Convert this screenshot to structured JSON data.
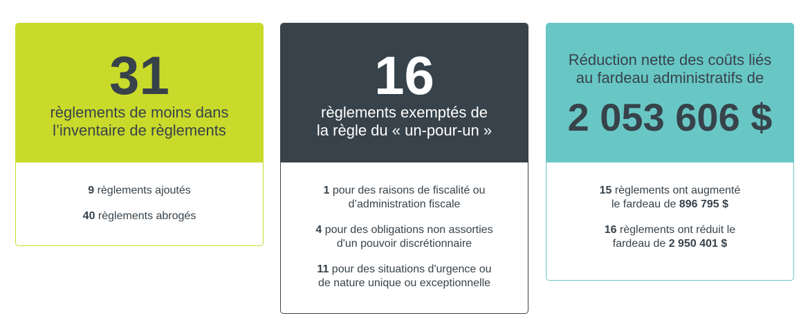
{
  "colors": {
    "green": "#c9da2a",
    "dark": "#37424a",
    "teal": "#68c7c5"
  },
  "cards": [
    {
      "number": "31",
      "line1": "règlements de moins dans",
      "line2": "l’inventaire de règlements",
      "items": [
        {
          "bold": "9",
          "text": " règlements ajoutés"
        },
        {
          "bold": "40",
          "text": " règlements abrogés"
        }
      ]
    },
    {
      "number": "16",
      "line1": "règlements exemptés de",
      "line2": "la règle du « un-pour-un »",
      "items": [
        {
          "bold": "1",
          "text": " pour des raisons de fiscalité ou",
          "text2": "d’administration fiscale"
        },
        {
          "bold": "4",
          "text": " pour des obligations non assorties",
          "text2": "d'un pouvoir discrétionnaire"
        },
        {
          "bold": "11",
          "text": " pour des situations d'urgence ou",
          "text2": "de nature unique ou exceptionnelle"
        }
      ]
    },
    {
      "line1": "Réduction nette des coûts liés",
      "line2": "au fardeau administratifs de",
      "amount": "2 053 606 $",
      "items": [
        {
          "bold": "15",
          "text": " règlements ont augmenté",
          "text2": "le fardeau de ",
          "bold2": "896 795 $"
        },
        {
          "bold": "16",
          "text": " règlements ont réduit le",
          "text2": "fardeau de ",
          "bold2": "2 950 401 $"
        }
      ]
    }
  ]
}
